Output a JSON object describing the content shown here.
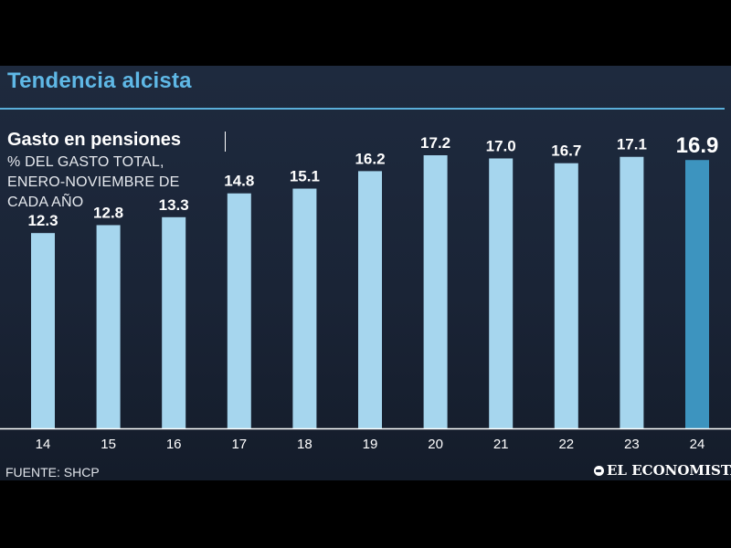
{
  "header": {
    "title": "Tendencia alcista",
    "subtitle": "Gasto en pensiones",
    "description_lines": [
      "% DEL GASTO TOTAL,",
      "ENERO-NOVIEMBRE DE",
      "CADA AÑO"
    ]
  },
  "footer": {
    "source": "FUENTE: SHCP",
    "brand": "EL ECONOMISTA"
  },
  "colors": {
    "bar": "#a6d6ee",
    "bar_highlight": "#3d94bf",
    "title": "#5fb8e6",
    "background": "#1a2436"
  },
  "chart_data": {
    "type": "bar",
    "title": "Gasto en pensiones",
    "categories": [
      "14",
      "15",
      "16",
      "17",
      "18",
      "19",
      "20",
      "21",
      "22",
      "23",
      "24"
    ],
    "values": [
      12.3,
      12.8,
      13.3,
      14.8,
      15.1,
      16.2,
      17.2,
      17.0,
      16.7,
      17.1,
      16.9
    ],
    "value_labels": [
      "12.3",
      "12.8",
      "13.3",
      "14.8",
      "15.1",
      "16.2",
      "17.2",
      "17.0",
      "16.7",
      "17.1",
      "16.9"
    ],
    "highlight_index": 10,
    "ylim": [
      0,
      17.2
    ],
    "grid": false,
    "legend": "none"
  }
}
